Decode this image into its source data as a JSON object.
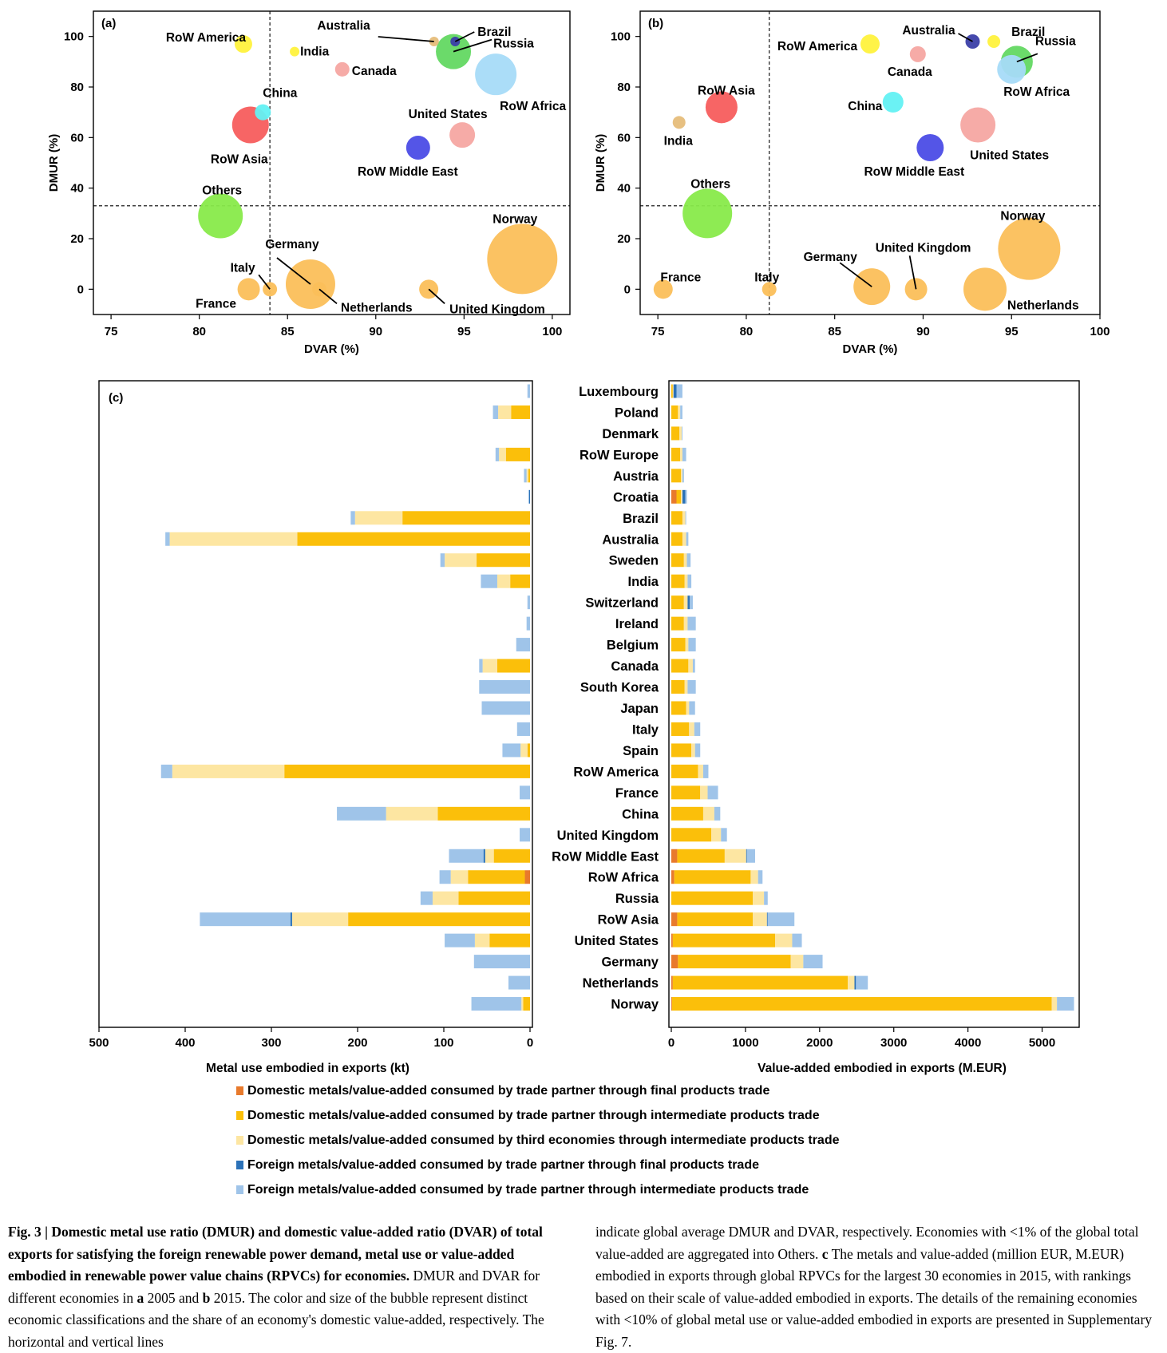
{
  "colors": {
    "dom_final": "#e87a2c",
    "dom_inter_partner": "#fbbf0a",
    "dom_inter_third": "#fde6a2",
    "for_final": "#2c72b8",
    "for_inter": "#9fc4e9",
    "line": "#000000"
  },
  "chart_data": [
    {
      "id": "a",
      "type": "scatter",
      "panel_label": "(a)",
      "xlabel": "DVAR (%)",
      "ylabel": "DMUR (%)",
      "xlim": [
        74,
        101
      ],
      "ylim": [
        -10,
        110
      ],
      "xticks": [
        75,
        80,
        85,
        90,
        95,
        100
      ],
      "yticks": [
        0,
        20,
        40,
        60,
        80,
        100
      ],
      "ref_lines": {
        "dvar": 84,
        "dmur": 33
      },
      "points": [
        {
          "label": "RoW America",
          "x": 82.5,
          "y": 97,
          "size": 11,
          "color": "#fff23d"
        },
        {
          "label": "India",
          "x": 85.4,
          "y": 94,
          "size": 6,
          "color": "#fff23d"
        },
        {
          "label": "Canada",
          "x": 88.1,
          "y": 87,
          "size": 9,
          "color": "#f6a6a2"
        },
        {
          "label": "Australia",
          "x": 93.3,
          "y": 98,
          "size": 6,
          "color": "#e6bd7a"
        },
        {
          "label": "Brazil",
          "x": 94.5,
          "y": 98,
          "size": 6,
          "color": "#3b3fa8"
        },
        {
          "label": "Russia",
          "x": 94.4,
          "y": 94,
          "size": 22,
          "color": "#63d862"
        },
        {
          "label": "RoW Africa",
          "x": 96.8,
          "y": 85,
          "size": 26,
          "color": "#a6dbf8"
        },
        {
          "label": "China",
          "x": 83.6,
          "y": 70,
          "size": 10,
          "color": "#63f1f3"
        },
        {
          "label": "RoW Asia",
          "x": 82.9,
          "y": 65,
          "size": 23,
          "color": "#f75d5d"
        },
        {
          "label": "United States",
          "x": 94.9,
          "y": 61,
          "size": 16,
          "color": "#f6a6a2"
        },
        {
          "label": "RoW Middle East",
          "x": 92.4,
          "y": 56,
          "size": 15,
          "color": "#4b4ce6"
        },
        {
          "label": "Others",
          "x": 81.2,
          "y": 29,
          "size": 28,
          "color": "#88ea4a"
        },
        {
          "label": "Norway",
          "x": 98.3,
          "y": 12,
          "size": 44,
          "color": "#fbbf5a"
        },
        {
          "label": "Germany",
          "x": 86.3,
          "y": 2,
          "size": 31,
          "color": "#fbbf5a"
        },
        {
          "label": "Netherlands",
          "x": 86.8,
          "y": 0,
          "size": 9,
          "color": "#fbbf5a"
        },
        {
          "label": "Italy",
          "x": 84,
          "y": 0,
          "size": 9,
          "color": "#fbbf5a"
        },
        {
          "label": "France",
          "x": 82.8,
          "y": 0,
          "size": 14,
          "color": "#fbbf5a"
        },
        {
          "label": "United Kingdom",
          "x": 93,
          "y": 0,
          "size": 12,
          "color": "#fbbf5a"
        }
      ]
    },
    {
      "id": "b",
      "type": "scatter",
      "panel_label": "(b)",
      "xlabel": "DVAR (%)",
      "ylabel": "DMUR (%)",
      "xlim": [
        74,
        100
      ],
      "ylim": [
        -10,
        110
      ],
      "xticks": [
        75,
        80,
        85,
        90,
        95,
        100
      ],
      "yticks": [
        0,
        20,
        40,
        60,
        80,
        100
      ],
      "ref_lines": {
        "dvar": 81.3,
        "dmur": 33
      },
      "points": [
        {
          "label": "Australia",
          "x": 92.8,
          "y": 98,
          "size": 9,
          "color": "#3b3fa8"
        },
        {
          "label": "Brazil",
          "x": 94,
          "y": 98,
          "size": 8,
          "color": "#fff23d"
        },
        {
          "label": "RoW America",
          "x": 87,
          "y": 97,
          "size": 12,
          "color": "#fff23d"
        },
        {
          "label": "Canada",
          "x": 89.7,
          "y": 93,
          "size": 10,
          "color": "#f6a6a2"
        },
        {
          "label": "Russia",
          "x": 95.3,
          "y": 90,
          "size": 20,
          "color": "#63d862"
        },
        {
          "label": "RoW Africa",
          "x": 95,
          "y": 87,
          "size": 18,
          "color": "#a6dbf8"
        },
        {
          "label": "RoW Asia",
          "x": 78.6,
          "y": 72,
          "size": 20,
          "color": "#f75d5d"
        },
        {
          "label": "China",
          "x": 88.3,
          "y": 74,
          "size": 13,
          "color": "#63f1f3"
        },
        {
          "label": "India",
          "x": 76.2,
          "y": 66,
          "size": 8,
          "color": "#e6bd7a"
        },
        {
          "label": "United States",
          "x": 93.1,
          "y": 65,
          "size": 22,
          "color": "#f6a6a2"
        },
        {
          "label": "RoW Middle East",
          "x": 90.4,
          "y": 56,
          "size": 17,
          "color": "#4b4ce6"
        },
        {
          "label": "Others",
          "x": 77.8,
          "y": 30,
          "size": 31,
          "color": "#88ea4a"
        },
        {
          "label": "Norway",
          "x": 96,
          "y": 16,
          "size": 39,
          "color": "#fbbf5a"
        },
        {
          "label": "France",
          "x": 75.3,
          "y": 0,
          "size": 12,
          "color": "#fbbf5a"
        },
        {
          "label": "Italy",
          "x": 81.3,
          "y": 0,
          "size": 9,
          "color": "#fbbf5a"
        },
        {
          "label": "Germany",
          "x": 87.1,
          "y": 1,
          "size": 23,
          "color": "#fbbf5a"
        },
        {
          "label": "United Kingdom",
          "x": 89.6,
          "y": 0,
          "size": 14,
          "color": "#fbbf5a"
        },
        {
          "label": "Netherlands",
          "x": 93.5,
          "y": 0,
          "size": 27,
          "color": "#fbbf5a"
        }
      ]
    },
    {
      "id": "c",
      "type": "bar",
      "panel_label": "(c)",
      "orientation": "horizontal-stacked",
      "categories": [
        "Luxembourg",
        "Poland",
        "Denmark",
        "RoW Europe",
        "Austria",
        "Croatia",
        "Brazil",
        "Australia",
        "Sweden",
        "India",
        "Switzerland",
        "Ireland",
        "Belgium",
        "Canada",
        "South Korea",
        "Japan",
        "Italy",
        "Spain",
        "RoW America",
        "France",
        "China",
        "United Kingdom",
        "RoW Middle East",
        "RoW Africa",
        "Russia",
        "RoW Asia",
        "United States",
        "Germany",
        "Netherlands",
        "Norway"
      ],
      "series_order": [
        "dom_final",
        "dom_inter_partner",
        "dom_inter_third",
        "for_final",
        "for_inter"
      ],
      "legend": [
        "Domestic metals/value-added consumed by trade partner through final products trade",
        "Domestic metals/value-added consumed by trade partner through intermediate products trade",
        "Domestic metals/value-added consumed by third economies through intermediate products trade",
        "Foreign metals/value-added consumed by trade partner through final products trade",
        "Foreign metals/value-added consumed by trade partner through intermediate products trade"
      ],
      "left": {
        "xlabel": "Metal use embodied in exports (kt)",
        "xlim": [
          500,
          0
        ],
        "xticks": [
          500,
          400,
          300,
          200,
          100,
          0
        ],
        "values": [
          [
            0,
            0,
            0,
            0,
            3
          ],
          [
            0,
            22,
            15,
            0,
            6
          ],
          [
            0,
            0,
            0,
            0,
            0
          ],
          [
            0,
            28,
            8,
            0,
            4
          ],
          [
            0,
            2,
            2,
            0,
            3
          ],
          [
            0,
            0,
            0,
            1,
            1
          ],
          [
            0,
            148,
            55,
            0,
            5
          ],
          [
            0,
            270,
            148,
            0,
            5
          ],
          [
            0,
            62,
            37,
            0,
            5
          ],
          [
            0,
            23,
            15,
            0,
            19
          ],
          [
            0,
            0,
            0,
            0,
            3
          ],
          [
            0,
            0,
            0,
            0,
            4
          ],
          [
            0,
            0,
            0,
            0,
            16
          ],
          [
            0,
            38,
            17,
            0,
            4
          ],
          [
            0,
            0,
            0,
            0,
            59
          ],
          [
            0,
            0,
            0,
            0,
            56
          ],
          [
            0,
            0,
            0,
            0,
            15
          ],
          [
            0,
            3,
            8,
            0,
            21
          ],
          [
            0,
            285,
            130,
            0,
            13
          ],
          [
            0,
            0,
            0,
            0,
            12
          ],
          [
            0,
            107,
            60,
            0,
            57
          ],
          [
            0,
            0,
            0,
            0,
            12
          ],
          [
            0,
            42,
            10,
            2,
            40
          ],
          [
            6,
            66,
            20,
            0,
            13
          ],
          [
            0,
            83,
            30,
            0,
            14
          ],
          [
            0,
            211,
            65,
            2,
            105
          ],
          [
            0,
            47,
            17,
            0,
            35
          ],
          [
            0,
            0,
            0,
            0,
            65
          ],
          [
            0,
            0,
            0,
            0,
            25
          ],
          [
            0,
            8,
            2,
            0,
            58
          ]
        ]
      },
      "right": {
        "xlabel": "Value-added embodied in exports (M.EUR)",
        "xlim": [
          0,
          5500
        ],
        "xticks": [
          0,
          1000,
          2000,
          3000,
          4000,
          5000
        ],
        "values": [
          [
            0,
            20,
            10,
            40,
            80
          ],
          [
            0,
            90,
            30,
            0,
            30
          ],
          [
            0,
            110,
            30,
            0,
            10
          ],
          [
            0,
            120,
            30,
            0,
            50
          ],
          [
            0,
            130,
            20,
            0,
            20
          ],
          [
            70,
            60,
            20,
            40,
            20
          ],
          [
            0,
            150,
            40,
            0,
            10
          ],
          [
            0,
            150,
            50,
            0,
            30
          ],
          [
            0,
            170,
            40,
            0,
            50
          ],
          [
            0,
            180,
            40,
            0,
            50
          ],
          [
            0,
            170,
            50,
            30,
            40
          ],
          [
            0,
            170,
            50,
            0,
            110
          ],
          [
            0,
            190,
            40,
            0,
            100
          ],
          [
            0,
            230,
            60,
            0,
            30
          ],
          [
            0,
            180,
            40,
            0,
            110
          ],
          [
            0,
            200,
            40,
            0,
            80
          ],
          [
            0,
            240,
            70,
            0,
            80
          ],
          [
            0,
            270,
            50,
            0,
            70
          ],
          [
            0,
            360,
            70,
            0,
            70
          ],
          [
            0,
            390,
            100,
            0,
            140
          ],
          [
            0,
            430,
            150,
            0,
            80
          ],
          [
            0,
            540,
            130,
            0,
            80
          ],
          [
            80,
            640,
            290,
            10,
            110
          ],
          [
            40,
            1030,
            100,
            0,
            60
          ],
          [
            0,
            1100,
            150,
            0,
            50
          ],
          [
            80,
            1020,
            190,
            10,
            360
          ],
          [
            20,
            1380,
            230,
            0,
            130
          ],
          [
            90,
            1520,
            170,
            0,
            260
          ],
          [
            20,
            2360,
            90,
            20,
            160
          ],
          [
            10,
            5120,
            70,
            0,
            230
          ]
        ]
      }
    }
  ],
  "caption": {
    "left_bold": "Fig. 3 | Domestic metal use ratio (DMUR) and domestic value-added ratio (DVAR) of total exports for satisfying the foreign renewable power demand, metal use or value-added embodied in renewable power value chains (RPVCs) for economies.",
    "left_text1": " DMUR and DVAR for different economies in ",
    "left_a": "a",
    "left_text2": " 2005 and ",
    "left_b": "b",
    "left_text3": " 2015. The color and size of the bubble represent distinct economic classifications and the share of an economy's domestic value-added, respectively. The horizontal and vertical lines",
    "right_text1": "indicate global average DMUR and DVAR, respectively. Economies with <1% of the global total value-added are aggregated into Others. ",
    "right_c": "c",
    "right_text2": " The metals and value-added (million EUR, M.EUR) embodied in exports through global RPVCs for the largest 30 economies in 2015, with rankings based on their scale of value-added embodied in exports. The details of the remaining economies with <10% of global metal use or value-added embodied in exports are presented in Supplementary Fig. 7."
  }
}
